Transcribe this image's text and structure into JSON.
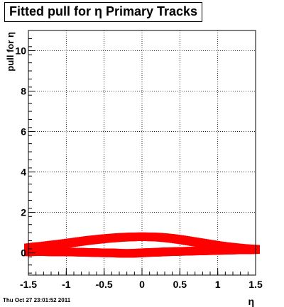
{
  "title": "Fitted pull for η  Primary Tracks",
  "timestamp": "Thu Oct 27 23:01:52 2011",
  "chart_data": {
    "type": "scatter",
    "title": "Fitted pull for η  Primary Tracks",
    "xlabel": "η",
    "ylabel": "pull for η",
    "xlim": [
      -1.5,
      1.5
    ],
    "ylim": [
      -1.1,
      11.0
    ],
    "x_ticks": [
      "-1.5",
      "-1",
      "-0.5",
      "0",
      "0.5",
      "1",
      "1.5"
    ],
    "y_ticks": [
      "0",
      "2",
      "4",
      "6",
      "8",
      "10"
    ],
    "grid": true,
    "marker_color": "#ff0000",
    "series": [
      {
        "x": [
          -1.5,
          -1.4,
          -1.3,
          -1.2,
          -1.1,
          -1.0,
          -0.9,
          -0.8,
          -0.7,
          -0.6,
          -0.5,
          -0.4,
          -0.3,
          -0.2,
          -0.1,
          0.0,
          0.1,
          0.2,
          0.3,
          0.4,
          0.5,
          0.6,
          0.7,
          0.8,
          0.9,
          1.0,
          1.1,
          1.2,
          1.3,
          1.4,
          1.5
        ],
        "values": [
          0.25,
          0.3,
          0.33,
          0.38,
          0.42,
          0.47,
          0.52,
          0.57,
          0.62,
          0.66,
          0.7,
          0.73,
          0.76,
          0.78,
          0.79,
          0.8,
          0.79,
          0.78,
          0.75,
          0.71,
          0.66,
          0.6,
          0.54,
          0.48,
          0.42,
          0.36,
          0.31,
          0.27,
          0.23,
          0.2,
          0.18
        ]
      },
      {
        "x": [
          -1.5,
          -1.4,
          -1.3,
          -1.2,
          -1.1,
          -1.0,
          -0.9,
          -0.8,
          -0.7,
          -0.6,
          -0.5,
          -0.4,
          -0.3,
          -0.2,
          -0.1,
          0.0,
          0.1,
          0.2,
          0.3,
          0.4,
          0.5,
          0.6,
          0.7,
          0.8,
          0.9,
          1.0,
          1.1,
          1.2,
          1.3,
          1.4,
          1.5
        ],
        "values": [
          0.05,
          0.06,
          0.06,
          0.05,
          0.05,
          0.05,
          0.04,
          0.03,
          0.02,
          0.01,
          0.0,
          0.0,
          -0.02,
          -0.03,
          -0.02,
          0.0,
          0.02,
          0.03,
          0.05,
          0.06,
          0.07,
          0.08,
          0.09,
          0.1,
          0.11,
          0.12,
          0.13,
          0.14,
          0.15,
          0.15,
          0.16
        ]
      }
    ]
  }
}
